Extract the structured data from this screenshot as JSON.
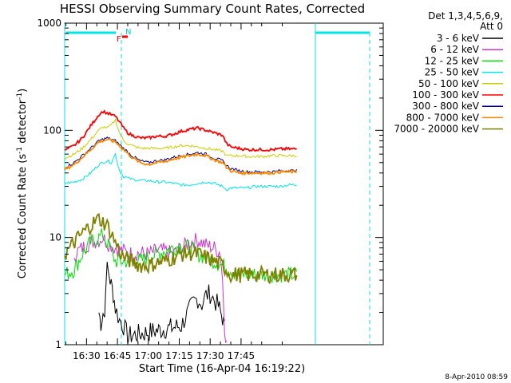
{
  "chart_data": {
    "type": "line",
    "title": "HESSI Observing Summary Count Rates, Corrected",
    "xlabel": "Start Time (16-Apr-04 16:19:22)",
    "ylabel_main": "Corrected Count Rate (s",
    "ylabel_sup1": "-1",
    "ylabel_mid": " detector",
    "ylabel_sup2": "-1",
    "ylabel_end": ")",
    "yscale": "log",
    "ylim": [
      1,
      1000
    ],
    "xlim_min": [
      19.4,
      174.0
    ],
    "x_ticks": [
      {
        "v": 30,
        "label": "16:30"
      },
      {
        "v": 45,
        "label": "16:45"
      },
      {
        "v": 60,
        "label": "17:00"
      },
      {
        "v": 75,
        "label": "17:15"
      },
      {
        "v": 90,
        "label": "17:30"
      },
      {
        "v": 105,
        "label": "17:45"
      }
    ],
    "y_ticks": [
      {
        "v": 1,
        "label": "1"
      },
      {
        "v": 10,
        "label": "10"
      },
      {
        "v": 100,
        "label": "100"
      },
      {
        "v": 1000,
        "label": "1000"
      }
    ],
    "legend": {
      "header1": "Det 1,3,4,5,6,9,",
      "header2": "Att 0",
      "placement": "right"
    },
    "series": [
      {
        "name": "3 - 6 keV",
        "color": "#000000",
        "x": [
          19.4,
          36,
          37,
          38,
          38.8,
          39.2,
          40,
          41,
          42,
          43,
          44,
          46,
          48,
          50,
          76,
          78,
          80,
          82,
          84,
          86,
          88,
          90,
          92,
          94,
          95,
          96,
          97,
          98,
          100,
          174
        ],
        "y": [
          null,
          2.0,
          1.6,
          2.0,
          1.8,
          3.5,
          5.0,
          4.5,
          3.6,
          3.0,
          2.2,
          1.7,
          1.5,
          1.2,
          1.5,
          1.8,
          2.1,
          2.5,
          2.7,
          2.4,
          2.9,
          3.0,
          2.6,
          2.3,
          2.0,
          1.8,
          1.4,
          null,
          null,
          null
        ]
      },
      {
        "name": "6 - 12 keV",
        "color": "#cc33cc",
        "x": [
          24,
          28,
          32,
          36,
          38,
          40,
          42,
          44,
          48,
          52,
          56,
          60,
          64,
          68,
          72,
          76,
          80,
          84,
          88,
          92,
          95,
          96,
          97,
          98
        ],
        "y": [
          7,
          8,
          9,
          9.5,
          10,
          9,
          8.5,
          8,
          7.5,
          7,
          7.2,
          7,
          7.5,
          7.5,
          7,
          8,
          9,
          9.5,
          8.5,
          8,
          7.2,
          4,
          1.5,
          1
        ]
      },
      {
        "name": "12 - 25 keV",
        "color": "#00dd00",
        "x": [
          19.4,
          24,
          28,
          32,
          36,
          38,
          40,
          42,
          44,
          48,
          52,
          56,
          60,
          64,
          68,
          72,
          76,
          80,
          84,
          88,
          92,
          96,
          100,
          104,
          108,
          112,
          116,
          120,
          124,
          128,
          132
        ],
        "y": [
          4.5,
          5,
          7,
          9,
          10,
          10.5,
          9,
          7.5,
          6,
          6,
          6,
          6,
          6.5,
          7,
          7.5,
          8,
          8.5,
          8,
          7,
          6.5,
          6,
          5.5,
          5,
          4.5,
          4.5,
          4.5,
          4.5,
          4.5,
          4.5,
          4.5,
          4.5
        ]
      },
      {
        "name": "25 - 50 keV",
        "color": "#00e5e5",
        "x": [
          19.4,
          24,
          28,
          32,
          36,
          40,
          42,
          44,
          46,
          48,
          50,
          52,
          56,
          60,
          64,
          68,
          72,
          76,
          80,
          84,
          88,
          92,
          96,
          98,
          100,
          104,
          108,
          112,
          116,
          120,
          124,
          128,
          132
        ],
        "y": [
          32,
          33,
          35,
          40,
          48,
          52,
          50,
          60,
          42,
          37,
          36,
          35,
          34,
          34,
          33,
          33,
          32,
          31,
          31,
          32,
          33,
          32,
          30,
          28,
          29,
          29,
          29,
          30,
          30,
          30,
          30,
          31,
          31
        ]
      },
      {
        "name": "50 - 100 keV",
        "color": "#cccc00",
        "x": [
          19.4,
          24,
          28,
          32,
          36,
          38,
          40,
          42,
          44,
          46,
          48,
          50,
          52,
          56,
          60,
          64,
          68,
          72,
          76,
          80,
          84,
          88,
          92,
          96,
          98,
          100,
          104,
          108,
          112,
          116,
          120,
          124,
          128,
          132
        ],
        "y": [
          55,
          60,
          68,
          82,
          100,
          108,
          105,
          112,
          125,
          95,
          80,
          75,
          72,
          68,
          68,
          68,
          68,
          70,
          72,
          72,
          70,
          68,
          66,
          64,
          58,
          58,
          58,
          57,
          57,
          57,
          58,
          58,
          58,
          58
        ]
      },
      {
        "name": "100 - 300 keV",
        "color": "#ff0000",
        "x": [
          19.4,
          24,
          28,
          32,
          36,
          38,
          40,
          42,
          44,
          46,
          48,
          50,
          52,
          56,
          60,
          64,
          68,
          72,
          76,
          80,
          84,
          88,
          92,
          96,
          98,
          100,
          104,
          108,
          112,
          116,
          120,
          124,
          128,
          132
        ],
        "y": [
          65,
          72,
          85,
          110,
          140,
          150,
          145,
          140,
          135,
          120,
          105,
          95,
          90,
          85,
          85,
          88,
          88,
          92,
          98,
          102,
          105,
          100,
          95,
          90,
          75,
          70,
          68,
          66,
          66,
          66,
          66,
          67,
          67,
          67
        ]
      },
      {
        "name": "300 - 800 keV",
        "color": "#000080",
        "x": [
          19.4,
          24,
          28,
          32,
          36,
          40,
          44,
          48,
          52,
          56,
          60,
          64,
          68,
          72,
          76,
          80,
          84,
          88,
          92,
          96,
          98,
          100,
          104,
          108,
          112,
          116,
          120,
          124,
          128,
          132
        ],
        "y": [
          45,
          50,
          58,
          68,
          80,
          85,
          80,
          68,
          58,
          52,
          50,
          52,
          53,
          56,
          58,
          60,
          62,
          60,
          55,
          52,
          47,
          44,
          42,
          41,
          41,
          41,
          41,
          42,
          42,
          42
        ]
      },
      {
        "name": "800 - 7000 keV",
        "color": "#ff8800",
        "x": [
          19.4,
          24,
          28,
          32,
          36,
          40,
          44,
          48,
          52,
          56,
          60,
          64,
          68,
          72,
          76,
          80,
          84,
          88,
          92,
          96,
          98,
          100,
          104,
          108,
          112,
          116,
          120,
          124,
          128,
          132
        ],
        "y": [
          43,
          48,
          56,
          66,
          78,
          82,
          78,
          66,
          56,
          50,
          48,
          50,
          51,
          54,
          56,
          58,
          60,
          58,
          53,
          50,
          45,
          42,
          40,
          40,
          40,
          40,
          40,
          41,
          41,
          41
        ]
      },
      {
        "name": "7000 - 20000 keV",
        "color": "#808000",
        "x": [
          19.4,
          22,
          26,
          30,
          34,
          36,
          38,
          40,
          42,
          44,
          46,
          48,
          52,
          56,
          60,
          64,
          68,
          72,
          76,
          80,
          84,
          88,
          92,
          96,
          100,
          104,
          108,
          112,
          116,
          120,
          124,
          128,
          132
        ],
        "y": [
          7,
          8,
          10,
          12,
          14,
          15,
          14,
          13,
          11,
          9,
          7.5,
          6.5,
          6,
          5.5,
          5.5,
          5.8,
          6,
          6.5,
          7,
          7.2,
          7,
          6.5,
          6,
          5.5,
          4.5,
          4.5,
          4.5,
          4.5,
          4.5,
          4.5,
          4.5,
          4.5,
          4.5
        ]
      }
    ],
    "annotations": {
      "flag_f": "F",
      "flag_n": "N"
    },
    "timestamp": "8-Apr-2010 08:59"
  }
}
